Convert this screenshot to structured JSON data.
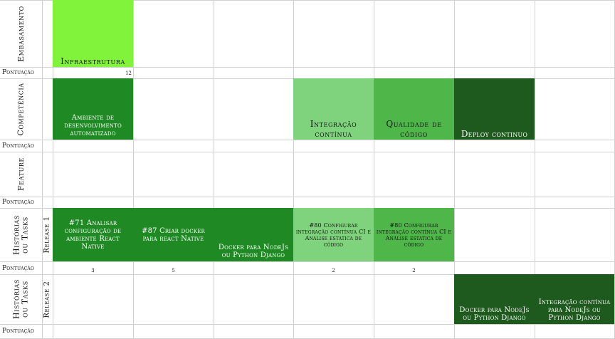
{
  "rows": {
    "embasamento": "Embasamento",
    "competencia": "Competência",
    "feature": "Feature",
    "historias_1": "Histórias ou Tasks",
    "historias_2": "Histórias ou Tasks",
    "release_1": "Release 1",
    "release_2": "Release 2",
    "pontuacao": "Pontuação"
  },
  "cards": {
    "infraestrutura": "Infraestrutura",
    "ambiente": "Ambiente de desenvolvimento automatizado",
    "integracao": "Integração contínua",
    "qualidade": "Qualidade de código",
    "deploy": "Deploy continuo",
    "task71": "#71 Analisar configuração de ambiente React Native",
    "task87": "#87 Criar docker para react Native",
    "docker_r1": "Docker para NodeJs ou Python Django",
    "task80a": "#80 Configurar integração contínua CI e Análise estática de código",
    "task80b": "#80 Configurar integração contínua CI e Análise estática de código",
    "docker_r2": "Docker para NodeJs ou Python Django",
    "integ_r2": "Integração contínua para NodeJs ou Python Django"
  },
  "scores": {
    "embasamento_infra": "12",
    "task71": "3",
    "task87": "5",
    "task80a": "2",
    "task80b": "2"
  },
  "colors": {
    "lime": "#82f33b",
    "green": "#1f8a24",
    "light_green": "#7fd37c",
    "mid_green": "#4fb64a",
    "dark_green": "#1e5a1e",
    "grid": "#d0d0d0"
  }
}
